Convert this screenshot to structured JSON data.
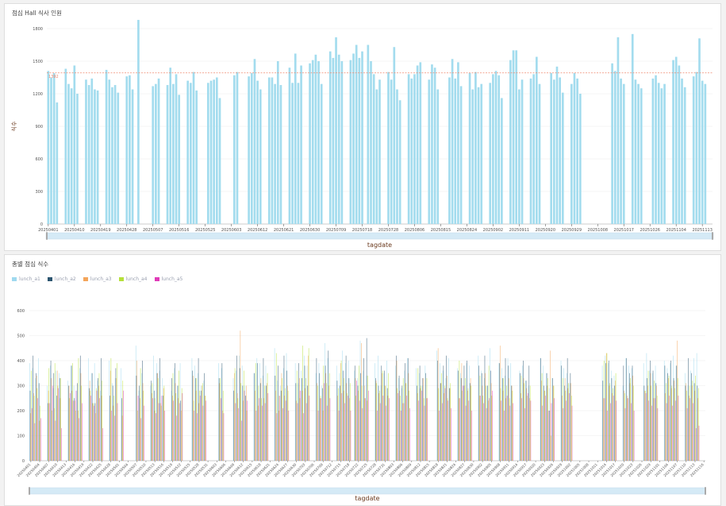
{
  "panel1": {
    "title": "점심 Hall 식사 인원",
    "ylabel": "식수",
    "xlabel": "tagdate"
  },
  "panel2": {
    "title": "총별 점심 식수",
    "xlabel": "tagdate"
  },
  "chart_data": [
    {
      "type": "bar",
      "title": "점심 Hall 식사 인원",
      "xlabel": "tagdate",
      "ylabel": "식수",
      "ylim": [
        0,
        1800
      ],
      "yticks": [
        0,
        300,
        600,
        900,
        1200,
        1500,
        1800
      ],
      "grid": true,
      "color": "#a3dcee",
      "mark_line": {
        "value": 1392,
        "label": "1392",
        "color": "#f08a70"
      },
      "x_start": "20250401",
      "x_end": "20251116",
      "x_omitted_dates": [
        "20250719"
      ],
      "tick_every": 9,
      "values": [
        1410,
        1350,
        1390,
        1120,
        0,
        0,
        1430,
        1290,
        1250,
        1460,
        1200,
        0,
        0,
        1330,
        1280,
        1340,
        1240,
        1230,
        0,
        0,
        1420,
        1330,
        1260,
        1280,
        1210,
        0,
        0,
        1360,
        1370,
        1240,
        0,
        1880,
        0,
        0,
        0,
        0,
        1270,
        1290,
        1340,
        0,
        0,
        1280,
        1440,
        1290,
        1380,
        1190,
        0,
        0,
        1320,
        1300,
        1400,
        1230,
        0,
        0,
        0,
        1300,
        1320,
        1330,
        1350,
        1160,
        0,
        0,
        0,
        0,
        1370,
        1400,
        0,
        0,
        0,
        1360,
        1390,
        1520,
        1320,
        1240,
        0,
        0,
        1350,
        1350,
        1290,
        1500,
        1280,
        0,
        0,
        1440,
        1300,
        1570,
        1300,
        1460,
        0,
        0,
        1480,
        1510,
        1560,
        1500,
        1290,
        0,
        0,
        1590,
        1530,
        1720,
        1560,
        1500,
        0,
        0,
        1510,
        1570,
        1650,
        1530,
        1590,
        0,
        1650,
        1500,
        1380,
        1240,
        1330,
        0,
        0,
        1400,
        1330,
        1630,
        1240,
        1140,
        0,
        0,
        1380,
        1340,
        1380,
        1460,
        1490,
        0,
        0,
        1330,
        1470,
        1440,
        1240,
        0,
        0,
        0,
        1350,
        1520,
        1340,
        1490,
        1270,
        0,
        0,
        1390,
        1240,
        1400,
        1260,
        1290,
        0,
        0,
        1300,
        1380,
        1410,
        1370,
        1160,
        0,
        0,
        1510,
        1600,
        1600,
        1240,
        1330,
        0,
        0,
        1340,
        1380,
        1540,
        1290,
        0,
        0,
        0,
        1390,
        1330,
        1450,
        1350,
        1210,
        0,
        0,
        1290,
        1390,
        1340,
        1200,
        0,
        0,
        0,
        0,
        0,
        0,
        0,
        0,
        0,
        0,
        1480,
        1410,
        1720,
        1340,
        1290,
        0,
        0,
        1750,
        1330,
        1290,
        1250,
        0,
        0,
        0,
        1340,
        1370,
        1300,
        1250,
        1290,
        0,
        0,
        1510,
        1540,
        1460,
        1340,
        1260,
        0,
        0,
        1360,
        1400,
        1710,
        1320,
        1290,
        0,
        0
      ]
    },
    {
      "type": "bar",
      "title": "총별 점심 식수",
      "xlabel": "tagdate",
      "ylim": [
        0,
        600
      ],
      "yticks": [
        0,
        100,
        200,
        300,
        400,
        500,
        600
      ],
      "grid": true,
      "tick_every": 3,
      "series_values_aligned_to": "dates with nonzero total",
      "series": [
        {
          "name": "lunch_a1",
          "color": "#9fd9ef",
          "values": [
            390,
            370,
            330,
            410,
            300,
            380,
            290,
            360,
            350,
            320,
            380,
            300,
            280,
            370,
            410,
            350,
            390,
            320,
            280,
            400,
            310,
            330,
            370,
            460,
            280,
            350,
            300,
            420,
            390,
            360,
            330,
            280,
            370,
            300,
            390,
            410,
            380,
            350,
            300,
            320,
            390,
            370,
            330,
            360,
            420,
            380,
            300,
            350,
            410,
            390,
            340,
            380,
            450,
            320,
            300,
            370,
            430,
            390,
            310,
            360,
            420,
            380,
            350,
            390,
            300,
            470,
            410,
            380,
            350,
            440,
            390,
            400,
            360,
            330,
            480,
            360,
            340,
            390,
            420,
            300,
            350,
            400,
            380,
            330,
            290,
            360,
            410,
            370,
            350,
            300,
            380,
            440,
            390,
            360,
            330,
            410,
            370,
            350,
            300,
            390,
            380,
            420,
            360,
            330,
            300,
            450,
            390,
            370,
            340,
            410,
            390,
            360,
            380,
            320,
            300,
            410,
            380,
            350,
            290,
            330,
            400,
            370,
            350,
            310,
            380,
            420,
            390,
            360,
            340,
            300,
            410,
            380,
            370,
            390,
            430,
            360,
            350,
            380,
            400,
            370,
            390,
            420,
            380,
            350,
            300,
            360,
            410,
            430
          ]
        },
        {
          "name": "lunch_a2",
          "color": "#2c5570",
          "values": [
            280,
            420,
            350,
            310,
            230,
            400,
            350,
            260,
            330,
            300,
            380,
            250,
            310,
            420,
            290,
            350,
            230,
            330,
            410,
            260,
            300,
            370,
            250,
            340,
            300,
            400,
            320,
            280,
            350,
            410,
            260,
            330,
            390,
            300,
            240,
            360,
            330,
            410,
            280,
            350,
            330,
            390,
            280,
            420,
            370,
            300,
            260,
            350,
            390,
            310,
            410,
            300,
            340,
            380,
            280,
            420,
            360,
            310,
            390,
            330,
            380,
            300,
            410,
            350,
            290,
            380,
            440,
            320,
            300,
            360,
            420,
            330,
            380,
            300,
            350,
            410,
            490,
            330,
            300,
            380,
            360,
            290,
            420,
            340,
            300,
            390,
            410,
            300,
            380,
            330,
            350,
            400,
            310,
            380,
            420,
            290,
            360,
            330,
            380,
            400,
            310,
            380,
            350,
            420,
            300,
            360,
            390,
            330,
            410,
            380,
            300,
            350,
            400,
            320,
            380,
            410,
            300,
            350,
            200,
            330,
            380,
            300,
            410,
            350,
            320,
            390,
            400,
            330,
            300,
            380,
            410,
            350,
            380,
            300,
            330,
            400,
            360,
            310,
            380,
            350,
            400,
            330,
            380,
            300,
            410,
            350,
            310,
            300
          ]
        },
        {
          "name": "lunch_a3",
          "color": "#f4a55a",
          "values": [
            190,
            270,
            340,
            160,
            280,
            330,
            210,
            360,
            250,
            300,
            280,
            240,
            200,
            350,
            320,
            230,
            190,
            300,
            260,
            360,
            220,
            330,
            180,
            400,
            250,
            310,
            270,
            200,
            350,
            230,
            290,
            260,
            310,
            250,
            200,
            340,
            280,
            230,
            300,
            260,
            310,
            200,
            350,
            270,
            520,
            240,
            300,
            280,
            220,
            330,
            250,
            310,
            280,
            200,
            350,
            260,
            300,
            240,
            330,
            280,
            290,
            420,
            310,
            250,
            200,
            350,
            300,
            260,
            390,
            280,
            310,
            250,
            330,
            280,
            470,
            300,
            240,
            320,
            270,
            350,
            300,
            260,
            400,
            280,
            230,
            310,
            350,
            270,
            290,
            330,
            250,
            450,
            310,
            270,
            340,
            290,
            250,
            390,
            300,
            280,
            330,
            260,
            300,
            350,
            240,
            310,
            460,
            280,
            250,
            330,
            300,
            270,
            330,
            290,
            250,
            320,
            280,
            300,
            440,
            300,
            260,
            330,
            290,
            310,
            250,
            430,
            300,
            270,
            320,
            280,
            260,
            310,
            340,
            280,
            300,
            350,
            250,
            300,
            270,
            330,
            290,
            320,
            480,
            310,
            260,
            300,
            280,
            250
          ]
        },
        {
          "name": "lunch_a4",
          "color": "#b5e03a",
          "values": [
            360,
            260,
            290,
            220,
            370,
            200,
            390,
            300,
            330,
            250,
            390,
            200,
            410,
            300,
            280,
            230,
            290,
            350,
            320,
            410,
            260,
            390,
            320,
            200,
            370,
            280,
            310,
            250,
            330,
            220,
            300,
            350,
            270,
            360,
            290,
            240,
            330,
            280,
            310,
            260,
            330,
            280,
            370,
            250,
            310,
            360,
            200,
            390,
            300,
            250,
            300,
            350,
            430,
            260,
            330,
            290,
            280,
            360,
            250,
            460,
            330,
            450,
            300,
            260,
            380,
            310,
            350,
            290,
            400,
            330,
            270,
            310,
            260,
            380,
            300,
            250,
            340,
            310,
            280,
            360,
            300,
            350,
            290,
            260,
            330,
            310,
            280,
            370,
            300,
            250,
            330,
            290,
            350,
            300,
            250,
            310,
            400,
            280,
            330,
            290,
            300,
            340,
            260,
            300,
            380,
            260,
            290,
            330,
            300,
            250,
            280,
            340,
            310,
            260,
            300,
            350,
            280,
            330,
            100,
            300,
            330,
            280,
            310,
            260,
            400,
            430,
            310,
            290,
            350,
            270,
            250,
            330,
            300,
            280,
            360,
            300,
            320,
            260,
            310,
            340,
            300,
            290,
            330,
            280,
            300,
            320,
            340,
            290
          ]
        },
        {
          "name": "lunch_a5",
          "color": "#e03ab8",
          "values": [
            210,
            150,
            250,
            170,
            230,
            300,
            160,
            290,
            130,
            270,
            240,
            280,
            170,
            230,
            260,
            220,
            280,
            250,
            130,
            200,
            180,
            230,
            280,
            260,
            170,
            220,
            250,
            190,
            230,
            260,
            200,
            240,
            180,
            230,
            270,
            200,
            190,
            260,
            220,
            240,
            250,
            190,
            230,
            210,
            160,
            280,
            240,
            200,
            250,
            220,
            230,
            270,
            190,
            260,
            210,
            240,
            200,
            230,
            280,
            190,
            230,
            260,
            200,
            250,
            310,
            220,
            250,
            200,
            270,
            230,
            260,
            200,
            320,
            240,
            210,
            250,
            280,
            200,
            230,
            260,
            220,
            250,
            270,
            200,
            230,
            260,
            210,
            240,
            280,
            220,
            250,
            200,
            230,
            290,
            240,
            210,
            250,
            300,
            220,
            240,
            200,
            260,
            230,
            210,
            250,
            280,
            240,
            200,
            260,
            220,
            230,
            250,
            210,
            270,
            240,
            220,
            260,
            200,
            230,
            250,
            210,
            240,
            270,
            220,
            250,
            200,
            230,
            260,
            240,
            210,
            250,
            230,
            200,
            270,
            240,
            220,
            250,
            210,
            230,
            260,
            220,
            240,
            260,
            210,
            250,
            230,
            130,
            140
          ]
        }
      ]
    }
  ]
}
